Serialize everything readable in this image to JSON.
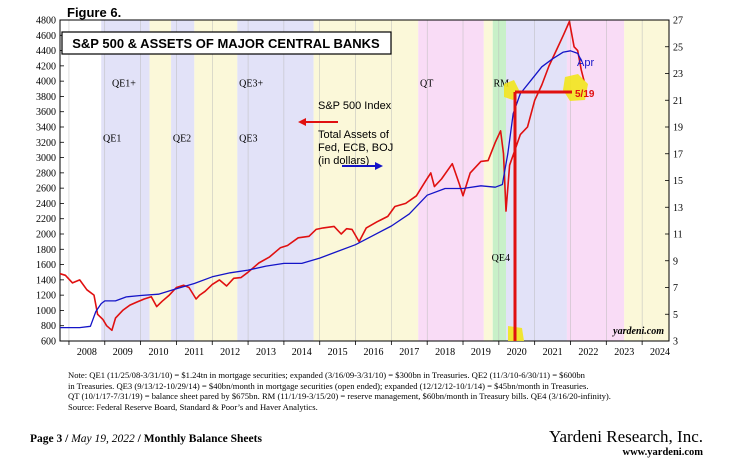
{
  "figure_label": "Figure 6.",
  "chart_data": {
    "type": "line",
    "title": "S&P 500 & ASSETS OF MAJOR CENTRAL BANKS",
    "x_range": [
      2007.75,
      2024.75
    ],
    "left_axis": {
      "min": 600,
      "max": 4800,
      "ticks": [
        "600",
        "800",
        "1000",
        "1200",
        "1400",
        "1600",
        "1800",
        "2000",
        "2200",
        "2400",
        "2600",
        "2800",
        "3000",
        "3200",
        "3400",
        "3600",
        "3800",
        "4000",
        "4200",
        "4400",
        "4600",
        "4800"
      ]
    },
    "right_axis": {
      "min": 3,
      "max": 27,
      "ticks": [
        "3",
        "5",
        "7",
        "9",
        "11",
        "13",
        "15",
        "17",
        "19",
        "21",
        "23",
        "25",
        "27"
      ]
    },
    "year_labels": [
      "2008",
      "2009",
      "2010",
      "2011",
      "2012",
      "2013",
      "2014",
      "2015",
      "2016",
      "2017",
      "2018",
      "2019",
      "2020",
      "2021",
      "2022",
      "2023",
      "2024"
    ],
    "shaded_periods": [
      {
        "label": "QE1",
        "start": 2008.9,
        "end": 2010.25,
        "color": "#e2e2f8"
      },
      {
        "label": "",
        "start": 2010.25,
        "end": 2010.85,
        "color": "#fbf8d9"
      },
      {
        "label": "QE2",
        "start": 2010.85,
        "end": 2011.5,
        "color": "#e2e2f8"
      },
      {
        "label": "",
        "start": 2011.5,
        "end": 2012.7,
        "color": "#fbf8d9"
      },
      {
        "label": "QE3",
        "start": 2012.7,
        "end": 2014.83,
        "color": "#e2e2f8"
      },
      {
        "label": "",
        "start": 2014.83,
        "end": 2017.75,
        "color": "#fbf8d9"
      },
      {
        "label": "QT",
        "start": 2017.75,
        "end": 2019.58,
        "color": "#f9dcf6"
      },
      {
        "label": "",
        "start": 2019.58,
        "end": 2019.83,
        "color": "#fbf8d9"
      },
      {
        "label": "RM",
        "start": 2019.83,
        "end": 2020.2,
        "color": "#c8f0c8"
      },
      {
        "label": "QE4",
        "start": 2020.2,
        "end": 2021.9,
        "color": "#e2e2f8"
      },
      {
        "label": "",
        "start": 2021.9,
        "end": 2023.5,
        "color": "#f9dcf6"
      },
      {
        "label": "",
        "start": 2023.5,
        "end": 2024.75,
        "color": "#fbf8d9"
      }
    ],
    "period_labels": [
      {
        "text": "QE1+",
        "x": 2009.2,
        "y": 3930
      },
      {
        "text": "QE1",
        "x": 2008.95,
        "y": 3210
      },
      {
        "text": "QE2",
        "x": 2010.9,
        "y": 3210
      },
      {
        "text": "QE3+",
        "x": 2012.75,
        "y": 3930
      },
      {
        "text": "QE3",
        "x": 2012.75,
        "y": 3210
      },
      {
        "text": "QT",
        "x": 2017.8,
        "y": 3930
      },
      {
        "text": "RM",
        "x": 2019.85,
        "y": 3930
      },
      {
        "text": "QE4",
        "x": 2019.8,
        "y": 1650
      }
    ],
    "series": [
      {
        "name": "S&P 500 Index",
        "axis": "left",
        "color": "#e01010",
        "x": [
          2007.75,
          2007.9,
          2008.1,
          2008.3,
          2008.5,
          2008.7,
          2008.8,
          2008.95,
          2009.05,
          2009.2,
          2009.3,
          2009.5,
          2009.7,
          2009.9,
          2010.1,
          2010.3,
          2010.45,
          2010.6,
          2010.8,
          2011.0,
          2011.2,
          2011.35,
          2011.55,
          2011.65,
          2011.8,
          2012.0,
          2012.2,
          2012.4,
          2012.6,
          2012.8,
          2013.0,
          2013.3,
          2013.6,
          2013.9,
          2014.1,
          2014.4,
          2014.7,
          2014.9,
          2015.1,
          2015.4,
          2015.6,
          2015.75,
          2015.9,
          2016.1,
          2016.3,
          2016.6,
          2016.9,
          2017.1,
          2017.4,
          2017.7,
          2017.95,
          2018.1,
          2018.2,
          2018.4,
          2018.7,
          2018.9,
          2019.0,
          2019.2,
          2019.5,
          2019.7,
          2019.9,
          2020.05,
          2020.13,
          2020.2,
          2020.3,
          2020.45,
          2020.6,
          2020.8,
          2021.0,
          2021.2,
          2021.4,
          2021.6,
          2021.8,
          2021.97,
          2022.1,
          2022.2,
          2022.3,
          2022.38
        ],
        "y": [
          1480,
          1460,
          1360,
          1400,
          1270,
          1200,
          950,
          880,
          800,
          740,
          900,
          1000,
          1070,
          1110,
          1150,
          1180,
          1050,
          1120,
          1200,
          1300,
          1330,
          1300,
          1150,
          1200,
          1250,
          1340,
          1400,
          1320,
          1420,
          1430,
          1500,
          1620,
          1700,
          1820,
          1850,
          1950,
          1970,
          2060,
          2080,
          2100,
          2000,
          2070,
          2060,
          1900,
          2080,
          2160,
          2230,
          2360,
          2400,
          2500,
          2690,
          2800,
          2620,
          2720,
          2920,
          2650,
          2500,
          2800,
          2950,
          2960,
          3200,
          3350,
          3050,
          2300,
          2900,
          3100,
          3300,
          3400,
          3750,
          3950,
          4200,
          4400,
          4600,
          4780,
          4450,
          4400,
          4150,
          4000
        ]
      },
      {
        "name": "Total Assets of Fed, ECB, BOJ (in dollars)",
        "axis": "right",
        "color": "#1414c8",
        "x": [
          2007.75,
          2008.3,
          2008.6,
          2008.75,
          2008.9,
          2009.0,
          2009.3,
          2009.6,
          2010.0,
          2010.5,
          2011.0,
          2011.5,
          2012.0,
          2012.5,
          2013.0,
          2013.5,
          2014.0,
          2014.5,
          2015.0,
          2015.5,
          2016.0,
          2016.5,
          2017.0,
          2017.5,
          2018.0,
          2018.5,
          2019.0,
          2019.5,
          2019.9,
          2020.1,
          2020.15,
          2020.25,
          2020.4,
          2020.6,
          2020.9,
          2021.2,
          2021.5,
          2021.8,
          2022.0,
          2022.2,
          2022.32
        ],
        "y": [
          4.0,
          4.0,
          4.1,
          5.2,
          5.8,
          6.0,
          6.0,
          6.3,
          6.4,
          6.5,
          6.9,
          7.3,
          7.8,
          8.1,
          8.3,
          8.6,
          8.8,
          8.8,
          9.2,
          9.7,
          10.2,
          10.9,
          11.6,
          12.5,
          13.9,
          14.4,
          14.4,
          14.6,
          14.5,
          14.7,
          15.5,
          17.0,
          20.0,
          21.5,
          22.5,
          23.5,
          24.1,
          24.6,
          24.7,
          24.5,
          23.9
        ]
      }
    ],
    "legend": [
      {
        "text": "S&P 500 Index",
        "series": "S&P 500 Index"
      },
      {
        "text": "Total Assets of",
        "series": "Total Assets"
      },
      {
        "text": "Fed, ECB, BOJ",
        "series": "Total Assets"
      },
      {
        "text": "(in dollars)",
        "series": "Total Assets"
      }
    ],
    "annotations": {
      "apr_label": "Apr",
      "date_label": "5/19",
      "watermark": "yardeni.com"
    }
  },
  "notes": [
    "Note: QE1 (11/25/08-3/31/10) = $1.24tn in mortgage securities; expanded (3/16/09-3/31/10) = $300bn in Treasuries. QE2 (11/3/10-6/30/11) = $600bn",
    "in Treasuries. QE3 (9/13/12-10/29/14) = $40bn/month in mortgage securities (open ended); expanded (12/12/12-10/1/14) = $45bn/month in Treasuries.",
    "QT (10/1/17-7/31/19) = balance sheet pared by $675bn. RM (11/1/19-3/15/20) = reserve management, $60bn/month in Treasury bills. QE4 (3/16/20-infinity).",
    "Source: Federal Reserve Board, Standard & Poor’s and Haver Analytics."
  ],
  "footer": {
    "page": "Page 3",
    "date": "May 19, 2022",
    "title": "Monthly Balance Sheets",
    "company": "Yardeni Research, Inc.",
    "website": "www.yardeni.com"
  }
}
